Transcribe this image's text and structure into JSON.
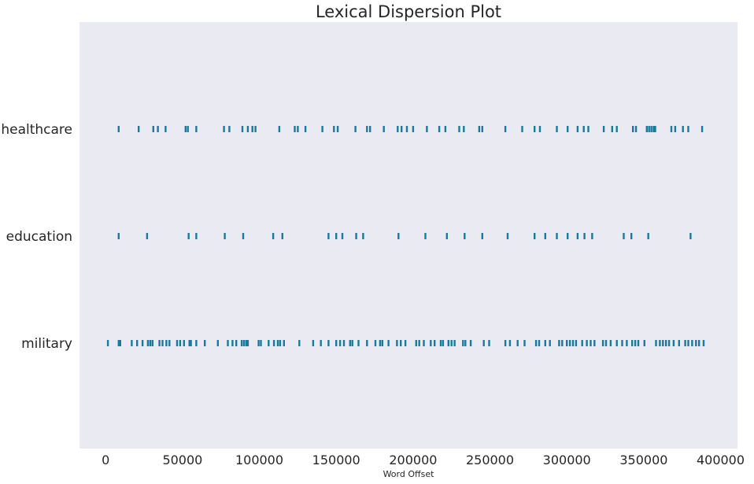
{
  "colors": {
    "background": "#eaeaf2",
    "marker": "#1a7a9c",
    "text": "#262626"
  },
  "chart_data": {
    "type": "scatter",
    "title": "Lexical Dispersion Plot",
    "xlabel": "Word Offset",
    "ylabel": "",
    "xlim": [
      -17000,
      411000
    ],
    "xticks": [
      0,
      50000,
      100000,
      150000,
      200000,
      250000,
      300000,
      350000,
      400000
    ],
    "xtick_labels": [
      "0",
      "50000",
      "100000",
      "150000",
      "200000",
      "250000",
      "300000",
      "350000",
      "400000"
    ],
    "grid": false,
    "series": [
      {
        "name": "healthcare",
        "values": [
          8500,
          21500,
          31000,
          34000,
          39000,
          52000,
          53500,
          59000,
          77000,
          80500,
          89000,
          92500,
          95500,
          97500,
          113000,
          123000,
          125000,
          130000,
          141000,
          148500,
          151000,
          162500,
          170000,
          172000,
          181000,
          190000,
          192500,
          196000,
          200000,
          209000,
          217000,
          221000,
          230000,
          233000,
          243000,
          245000,
          260000,
          271000,
          279000,
          282500,
          293500,
          300500,
          307000,
          311000,
          314000,
          324000,
          329500,
          332500,
          343000,
          345000,
          352000,
          353500,
          355000,
          356500,
          357500,
          368000,
          370500,
          375500,
          379000,
          388000
        ]
      },
      {
        "name": "education",
        "values": [
          8500,
          27000,
          54000,
          59000,
          77500,
          89500,
          109000,
          115000,
          145000,
          150000,
          154000,
          163000,
          167500,
          190500,
          208000,
          222000,
          233500,
          245000,
          261500,
          279000,
          286000,
          293500,
          300500,
          307000,
          311500,
          316500,
          337000,
          342000,
          353000,
          380500
        ]
      },
      {
        "name": "military",
        "values": [
          1500,
          8500,
          9500,
          17000,
          20500,
          24000,
          27500,
          29000,
          30500,
          35000,
          37000,
          39500,
          41500,
          46500,
          48500,
          51000,
          54500,
          55500,
          59000,
          64500,
          73000,
          79500,
          82500,
          85000,
          88500,
          90000,
          91500,
          92500,
          99500,
          101000,
          106000,
          109500,
          112000,
          113500,
          116000,
          126000,
          135000,
          140000,
          145000,
          150000,
          152500,
          155000,
          159000,
          160500,
          164500,
          170000,
          175500,
          178500,
          180000,
          184000,
          189500,
          192000,
          195000,
          202000,
          204000,
          207000,
          211500,
          214000,
          218000,
          219500,
          223000,
          225000,
          227000,
          232500,
          234000,
          237500,
          246000,
          249500,
          260000,
          263000,
          268000,
          272500,
          280000,
          282000,
          286000,
          289000,
          295000,
          297000,
          300000,
          302000,
          304000,
          306000,
          310000,
          313000,
          315500,
          318000,
          323500,
          325500,
          328500,
          332500,
          336000,
          339000,
          342500,
          344500,
          346500,
          350500,
          358000,
          360500,
          362500,
          364500,
          366500,
          369500,
          373000,
          377000,
          379000,
          381500,
          384000,
          386000,
          389000
        ]
      }
    ]
  }
}
